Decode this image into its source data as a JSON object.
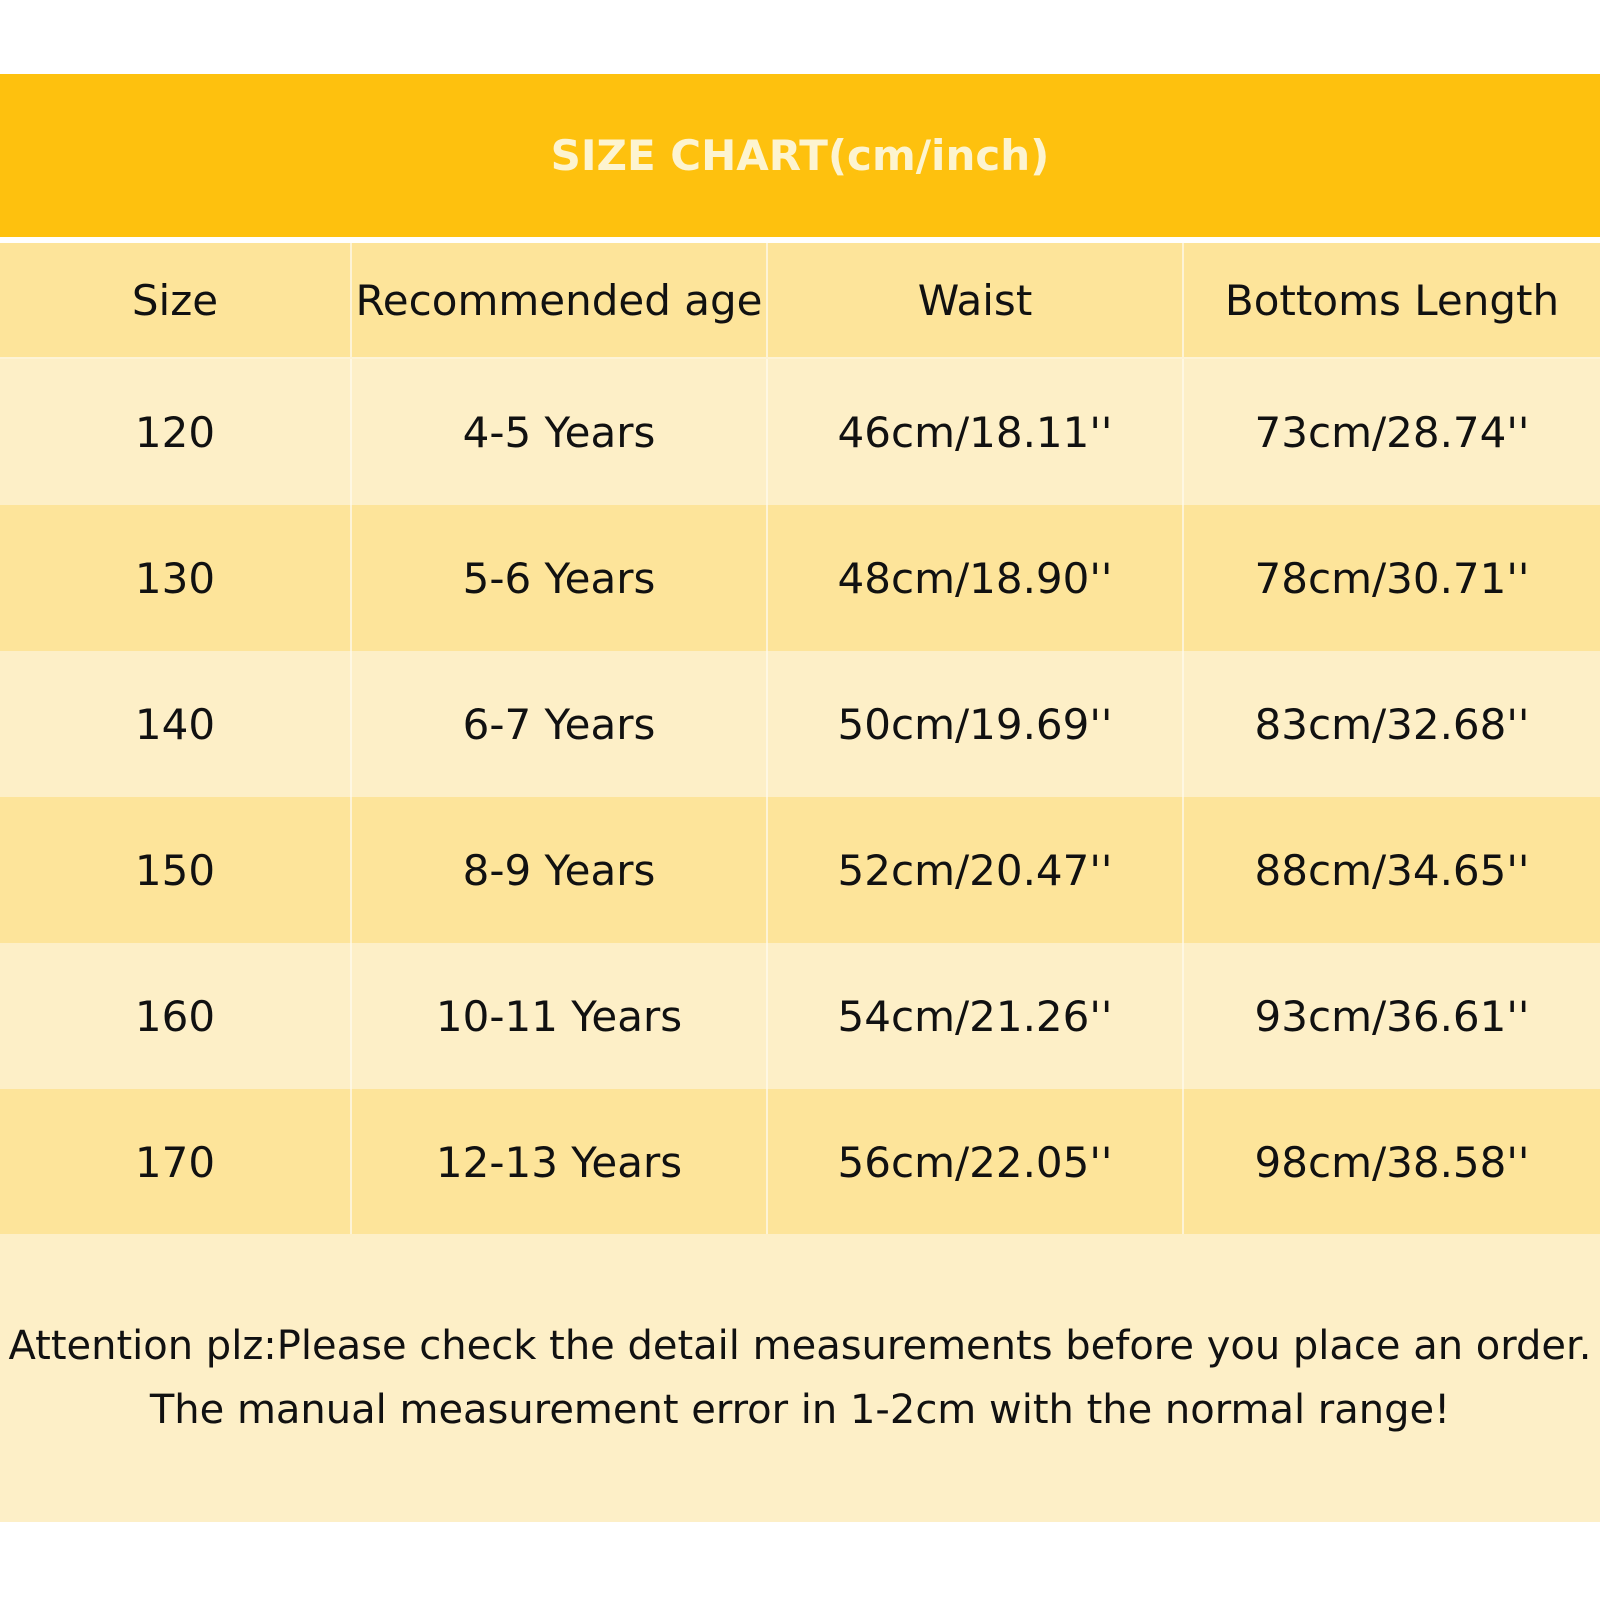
{
  "title": "SIZE CHART(cm/inch)",
  "colors": {
    "title_bar": "#fec10e",
    "title_text": "#fdf4d0",
    "row_dark": "#fde49a",
    "row_light": "#fdefc7"
  },
  "table": {
    "headers": [
      "Size",
      "Recommended age",
      "Waist",
      "Bottoms Length"
    ],
    "rows": [
      [
        "120",
        "4-5 Years",
        "46cm/18.11''",
        "73cm/28.74''"
      ],
      [
        "130",
        "5-6 Years",
        "48cm/18.90''",
        "78cm/30.71''"
      ],
      [
        "140",
        "6-7 Years",
        "50cm/19.69''",
        "83cm/32.68''"
      ],
      [
        "150",
        "8-9 Years",
        "52cm/20.47''",
        "88cm/34.65''"
      ],
      [
        "160",
        "10-11 Years",
        "54cm/21.26''",
        "93cm/36.61''"
      ],
      [
        "170",
        "12-13 Years",
        "56cm/22.05''",
        "98cm/38.58''"
      ]
    ]
  },
  "notice": {
    "line1": "Attention plz:Please check the detail measurements before you place an order.",
    "line2": "The manual measurement error in 1-2cm with the normal range!"
  }
}
